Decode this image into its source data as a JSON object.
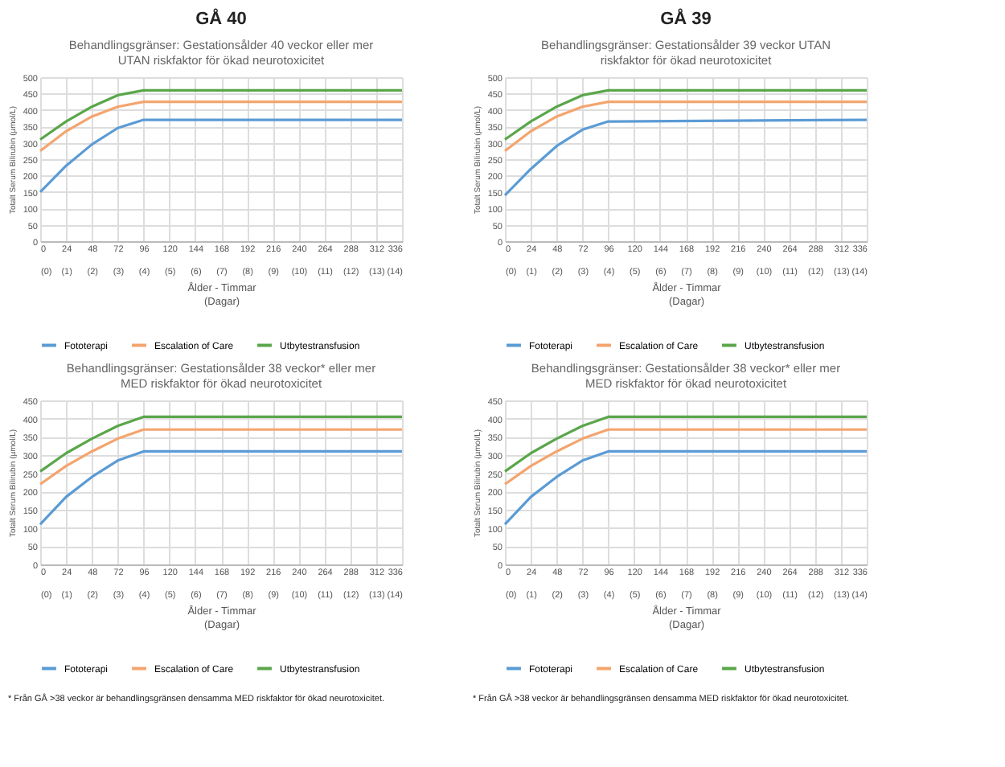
{
  "chart_data": [
    {
      "type": "line",
      "title": "Behandlingsgränser: Gestationsålder 40 veckor eller mer\nUTAN riskfaktor för ökad neurotoxicitet",
      "xlabel": "Ålder - Timmar\n(Dagar)",
      "ylabel": "Totalt Serum Bilirubin (µmol/L)",
      "annotations": [
        "GÅ 40"
      ],
      "x": [
        0,
        24,
        48,
        72,
        96,
        336
      ],
      "series": [
        {
          "name": "Fototerapi",
          "color": "#5b9bd5",
          "values": [
            150,
            230,
            295,
            345,
            370,
            370
          ]
        },
        {
          "name": "Escalation of Care",
          "color": "#f4a46e",
          "values": [
            275,
            335,
            380,
            410,
            425,
            425
          ]
        },
        {
          "name": "Utbytestransfusion",
          "color": "#5aa64a",
          "values": [
            310,
            365,
            410,
            445,
            460,
            460
          ]
        }
      ],
      "xlim": [
        0,
        336
      ],
      "xticks": [
        0,
        24,
        48,
        72,
        96,
        120,
        144,
        168,
        192,
        216,
        240,
        264,
        288,
        312,
        336
      ],
      "x2lim": [
        0,
        14
      ],
      "x2ticks": [
        {
          "value": 0,
          "label": "(0)"
        },
        {
          "value": 1,
          "label": "(1)"
        },
        {
          "value": 2,
          "label": "(2)"
        },
        {
          "value": 3,
          "label": "(3)"
        },
        {
          "value": 4,
          "label": "(4)"
        },
        {
          "value": 5,
          "label": "(5)"
        },
        {
          "value": 6,
          "label": "(6)"
        },
        {
          "value": 7,
          "label": "(7)"
        },
        {
          "value": 8,
          "label": "(8)"
        },
        {
          "value": 9,
          "label": "(9)"
        },
        {
          "value": 10,
          "label": "(10)"
        },
        {
          "value": 11,
          "label": "(11)"
        },
        {
          "value": 12,
          "label": "(12)"
        },
        {
          "value": 13,
          "label": "(13)"
        },
        {
          "value": 14,
          "label": "(14)"
        }
      ],
      "ylim": [
        0,
        500
      ],
      "yticks": [
        0,
        50,
        100,
        150,
        200,
        250,
        300,
        350,
        400,
        450,
        500
      ],
      "grid": true,
      "legend": "bottom",
      "marker": "none",
      "line_style": "solid"
    },
    {
      "type": "line",
      "title": "Behandlingsgränser: Gestationsålder 39 veckor UTAN\nriskfaktor för ökad neurotoxicitet",
      "xlabel": "Ålder - Timmar\n(Dagar)",
      "ylabel": "Totalt Serum Bilirubin (µmol/L)",
      "annotations": [
        "GÅ 39"
      ],
      "x": [
        0,
        24,
        48,
        72,
        96,
        336
      ],
      "series": [
        {
          "name": "Fototerapi",
          "color": "#5b9bd5",
          "values": [
            140,
            220,
            290,
            340,
            365,
            370
          ]
        },
        {
          "name": "Escalation of Care",
          "color": "#f4a46e",
          "values": [
            275,
            335,
            380,
            410,
            425,
            425
          ]
        },
        {
          "name": "Utbytestransfusion",
          "color": "#5aa64a",
          "values": [
            310,
            365,
            410,
            445,
            460,
            460
          ]
        }
      ],
      "xlim": [
        0,
        336
      ],
      "xticks": [
        0,
        24,
        48,
        72,
        96,
        120,
        144,
        168,
        192,
        216,
        240,
        264,
        288,
        312,
        336
      ],
      "x2lim": [
        0,
        14
      ],
      "x2ticks": [
        {
          "value": 0,
          "label": "(0)"
        },
        {
          "value": 1,
          "label": "(1)"
        },
        {
          "value": 2,
          "label": "(2)"
        },
        {
          "value": 3,
          "label": "(3)"
        },
        {
          "value": 4,
          "label": "(4)"
        },
        {
          "value": 5,
          "label": "(5)"
        },
        {
          "value": 6,
          "label": "(6)"
        },
        {
          "value": 7,
          "label": "(7)"
        },
        {
          "value": 8,
          "label": "(8)"
        },
        {
          "value": 9,
          "label": "(9)"
        },
        {
          "value": 10,
          "label": "(10)"
        },
        {
          "value": 11,
          "label": "(11)"
        },
        {
          "value": 12,
          "label": "(12)"
        },
        {
          "value": 13,
          "label": "(13)"
        },
        {
          "value": 14,
          "label": "(14)"
        }
      ],
      "ylim": [
        0,
        500
      ],
      "yticks": [
        0,
        50,
        100,
        150,
        200,
        250,
        300,
        350,
        400,
        450,
        500
      ],
      "grid": true,
      "legend": "bottom",
      "marker": "none",
      "line_style": "solid"
    },
    {
      "type": "line",
      "title": "Behandlingsgränser: Gestationsålder 38 veckor* eller mer\nMED riskfaktor för ökad neurotoxicitet",
      "xlabel": "Ålder - Timmar\n(Dagar)",
      "ylabel": "Totalt Serum Bilirubin (µmol/L)",
      "annotations": [
        "* Från GÅ >38 veckor är behandlingsgränsen densamma MED riskfaktor för ökad neurotoxicitet."
      ],
      "x": [
        0,
        24,
        48,
        72,
        96,
        336
      ],
      "series": [
        {
          "name": "Fototerapi",
          "color": "#5b9bd5",
          "values": [
            110,
            185,
            240,
            285,
            310,
            310
          ]
        },
        {
          "name": "Escalation of Care",
          "color": "#f4a46e",
          "values": [
            220,
            270,
            310,
            345,
            370,
            370
          ]
        },
        {
          "name": "Utbytestransfusion",
          "color": "#5aa64a",
          "values": [
            255,
            305,
            345,
            380,
            405,
            405
          ]
        }
      ],
      "xlim": [
        0,
        336
      ],
      "xticks": [
        0,
        24,
        48,
        72,
        96,
        120,
        144,
        168,
        192,
        216,
        240,
        264,
        288,
        312,
        336
      ],
      "x2lim": [
        0,
        14
      ],
      "x2ticks": [
        {
          "value": 0,
          "label": "(0)"
        },
        {
          "value": 1,
          "label": "(1)"
        },
        {
          "value": 2,
          "label": "(2)"
        },
        {
          "value": 3,
          "label": "(3)"
        },
        {
          "value": 4,
          "label": "(4)"
        },
        {
          "value": 5,
          "label": "(5)"
        },
        {
          "value": 6,
          "label": "(6)"
        },
        {
          "value": 7,
          "label": "(7)"
        },
        {
          "value": 8,
          "label": "(8)"
        },
        {
          "value": 9,
          "label": "(9)"
        },
        {
          "value": 10,
          "label": "(10)"
        },
        {
          "value": 11,
          "label": "(11)"
        },
        {
          "value": 12,
          "label": "(12)"
        },
        {
          "value": 13,
          "label": "(13)"
        },
        {
          "value": 14,
          "label": "(14)"
        }
      ],
      "ylim": [
        0,
        450
      ],
      "yticks": [
        0,
        50,
        100,
        150,
        200,
        250,
        300,
        350,
        400,
        450
      ],
      "grid": true,
      "legend": "bottom",
      "marker": "none",
      "line_style": "solid"
    },
    {
      "type": "line",
      "title": "Behandlingsgränser: Gestationsålder 38 veckor* eller mer\nMED riskfaktor för ökad neurotoxicitet",
      "xlabel": "Ålder - Timmar\n(Dagar)",
      "ylabel": "Totalt Serum Bilirubin (µmol/L)",
      "annotations": [
        "* Från GÅ >38 veckor är behandlingsgränsen densamma MED riskfaktor för ökad neurotoxicitet."
      ],
      "x": [
        0,
        24,
        48,
        72,
        96,
        336
      ],
      "series": [
        {
          "name": "Fototerapi",
          "color": "#5b9bd5",
          "values": [
            110,
            185,
            240,
            285,
            310,
            310
          ]
        },
        {
          "name": "Escalation of Care",
          "color": "#f4a46e",
          "values": [
            220,
            270,
            310,
            345,
            370,
            370
          ]
        },
        {
          "name": "Utbytestransfusion",
          "color": "#5aa64a",
          "values": [
            255,
            305,
            345,
            380,
            405,
            405
          ]
        }
      ],
      "xlim": [
        0,
        336
      ],
      "xticks": [
        0,
        24,
        48,
        72,
        96,
        120,
        144,
        168,
        192,
        216,
        240,
        264,
        288,
        312,
        336
      ],
      "x2lim": [
        0,
        14
      ],
      "x2ticks": [
        {
          "value": 0,
          "label": "(0)"
        },
        {
          "value": 1,
          "label": "(1)"
        },
        {
          "value": 2,
          "label": "(2)"
        },
        {
          "value": 3,
          "label": "(3)"
        },
        {
          "value": 4,
          "label": "(4)"
        },
        {
          "value": 5,
          "label": "(5)"
        },
        {
          "value": 6,
          "label": "(6)"
        },
        {
          "value": 7,
          "label": "(7)"
        },
        {
          "value": 8,
          "label": "(8)"
        },
        {
          "value": 9,
          "label": "(9)"
        },
        {
          "value": 10,
          "label": "(10)"
        },
        {
          "value": 11,
          "label": "(11)"
        },
        {
          "value": 12,
          "label": "(12)"
        },
        {
          "value": 13,
          "label": "(13)"
        },
        {
          "value": 14,
          "label": "(14)"
        }
      ],
      "ylim": [
        0,
        450
      ],
      "yticks": [
        0,
        50,
        100,
        150,
        200,
        250,
        300,
        350,
        400,
        450
      ],
      "grid": true,
      "legend": "bottom",
      "marker": "none",
      "line_style": "solid"
    }
  ]
}
